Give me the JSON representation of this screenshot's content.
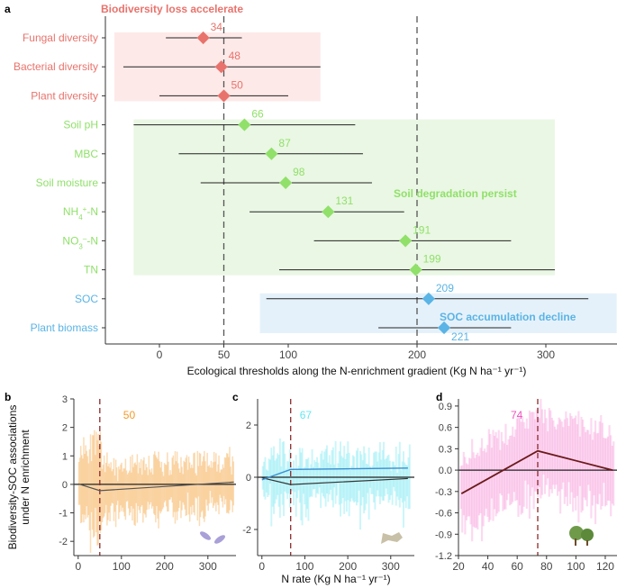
{
  "chart_data": [
    {
      "panel": "a",
      "type": "forest",
      "xlabel": "Ecological thresholds along the N-enrichment gradient (Kg N ha⁻¹ yr⁻¹)",
      "xlim": [
        -45,
        355
      ],
      "xticks": [
        0,
        50,
        100,
        200,
        300
      ],
      "dashed_lines": [
        50,
        200
      ],
      "rows": [
        {
          "label": "Fungal diversity",
          "value": 34,
          "lo": 5,
          "hi": 64,
          "group": "biodiversity"
        },
        {
          "label": "Bacterial diversity",
          "value": 48,
          "lo": -28,
          "hi": 125,
          "group": "biodiversity"
        },
        {
          "label": "Plant diversity",
          "value": 50,
          "lo": 0,
          "hi": 100,
          "group": "biodiversity"
        },
        {
          "label": "Soil pH",
          "value": 66,
          "lo": -20,
          "hi": 152,
          "group": "soil"
        },
        {
          "label": "MBC",
          "value": 87,
          "lo": 15,
          "hi": 158,
          "group": "soil"
        },
        {
          "label": "Soil moisture",
          "value": 98,
          "lo": 32,
          "hi": 165,
          "group": "soil"
        },
        {
          "label": "NH4+-N",
          "value": 131,
          "lo": 70,
          "hi": 190,
          "group": "soil"
        },
        {
          "label": "NO3–-N",
          "value": 191,
          "lo": 120,
          "hi": 273,
          "group": "soil"
        },
        {
          "label": "TN",
          "value": 199,
          "lo": 93,
          "hi": 307,
          "group": "soil"
        },
        {
          "label": "SOC",
          "value": 209,
          "lo": 83,
          "hi": 333,
          "group": "soc"
        },
        {
          "label": "Plant biomass",
          "value": 221,
          "lo": 170,
          "hi": 273,
          "group": "soc"
        }
      ],
      "groups": [
        {
          "key": "biodiversity",
          "title": "Biodiversity loss accelerate",
          "color": "#e8736c",
          "bg": "#fde9e8",
          "range": [
            -35,
            125
          ]
        },
        {
          "key": "soil",
          "title": "Soil degradation persist",
          "color": "#90e06a",
          "bg": "#eaf7e4",
          "range": [
            -20,
            307
          ]
        },
        {
          "key": "soc",
          "title": "SOC accumulation decline",
          "color": "#5ab4e5",
          "bg": "#e5f1fa",
          "range": [
            78,
            355
          ]
        }
      ]
    },
    {
      "panel": "b",
      "type": "line",
      "ylabel": "Biodiversity-SOC associations under N enrichment",
      "threshold": 50,
      "threshold_label": "50",
      "color": "#f39a2b",
      "xlim": [
        -10,
        365
      ],
      "ylim": [
        -2.5,
        3
      ],
      "xticks": [
        0,
        100,
        200,
        300
      ],
      "yticks": [
        -2,
        -1,
        0,
        1,
        2,
        3
      ],
      "trend": [
        [
          0,
          0.02
        ],
        [
          50,
          -0.22
        ],
        [
          360,
          0.08
        ]
      ]
    },
    {
      "panel": "c",
      "type": "line",
      "xlabel": "N rate (Kg N ha⁻¹ yr⁻¹)",
      "threshold": 67,
      "threshold_label": "67",
      "color": "#66e6f0",
      "xlim": [
        -10,
        355
      ],
      "ylim": [
        -3,
        3
      ],
      "xticks": [
        0,
        100,
        200,
        300
      ],
      "yticks": [
        -2,
        0,
        2
      ],
      "trend": [
        [
          0,
          -0.02
        ],
        [
          67,
          -0.28
        ],
        [
          340,
          -0.05
        ]
      ],
      "trend2": [
        [
          0,
          -0.1
        ],
        [
          67,
          0.3
        ],
        [
          340,
          0.35
        ]
      ]
    },
    {
      "panel": "d",
      "type": "line",
      "threshold": 74,
      "threshold_label": "74",
      "color": "#f050c0",
      "xlim": [
        20,
        128
      ],
      "ylim": [
        -1.2,
        1.0
      ],
      "xticks": [
        20,
        40,
        60,
        80,
        100,
        120
      ],
      "yticks": [
        -1.2,
        -0.9,
        -0.6,
        -0.3,
        0.0,
        0.3,
        0.6,
        0.9
      ],
      "ytick_labels": [
        "-1.2",
        "-0.9",
        "-0.6",
        "-0.3",
        "0.0",
        "0.3",
        "0.6",
        "0.9"
      ],
      "trend": [
        [
          22,
          -0.33
        ],
        [
          74,
          0.27
        ],
        [
          125,
          0.0
        ]
      ]
    }
  ]
}
